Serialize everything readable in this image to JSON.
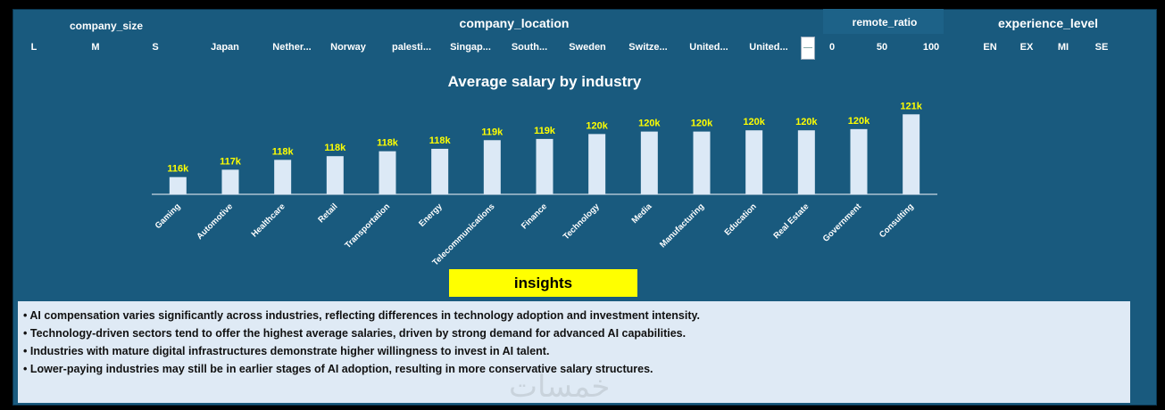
{
  "slicers": {
    "company_size": {
      "title": "company_size",
      "options": [
        "L",
        "M",
        "S"
      ]
    },
    "company_location": {
      "title": "company_location",
      "options": [
        "Japan",
        "Nether...",
        "Norway",
        "palesti...",
        "Singap...",
        "South...",
        "Sweden",
        "Switze...",
        "United...",
        "United..."
      ]
    },
    "remote_ratio": {
      "title": "remote_ratio",
      "options": [
        "0",
        "50",
        "100"
      ]
    },
    "experience_level": {
      "title": "experience_level",
      "options": [
        "EN",
        "EX",
        "MI",
        "SE"
      ]
    }
  },
  "chart_data": {
    "type": "bar",
    "title": "Average salary by industry",
    "categories": [
      "Gaming",
      "Automotive",
      "Healthcare",
      "Retail",
      "Transportation",
      "Energy",
      "Telecommunications",
      "Finance",
      "Technology",
      "Media",
      "Manufacturing",
      "Education",
      "Real Estate",
      "Government",
      "Consulting"
    ],
    "values": [
      116200,
      116800,
      117600,
      117900,
      118300,
      118500,
      119200,
      119300,
      119700,
      119900,
      119900,
      120000,
      120000,
      120100,
      121300
    ],
    "data_labels": [
      "116k",
      "117k",
      "118k",
      "118k",
      "118k",
      "118k",
      "119k",
      "119k",
      "120k",
      "120k",
      "120k",
      "120k",
      "120k",
      "120k",
      "121k"
    ],
    "ylim": [
      114800,
      121900
    ],
    "xlabel": "",
    "ylabel": "",
    "bar_color": "#dce9f6",
    "label_color": "#ffff00"
  },
  "insights": {
    "label": "insights",
    "points": [
      "AI compensation varies significantly across industries, reflecting differences in technology adoption and investment intensity.",
      "Technology-driven sectors tend to offer the highest average salaries, driven by strong demand for advanced  AI capabilities.",
      "Industries with mature digital infrastructures demonstrate higher willingness to invest in AI talent.",
      "Lower-paying industries may still be in earlier stages of AI adoption, resulting in more conservative salary structures."
    ]
  },
  "watermark": "خمسات"
}
